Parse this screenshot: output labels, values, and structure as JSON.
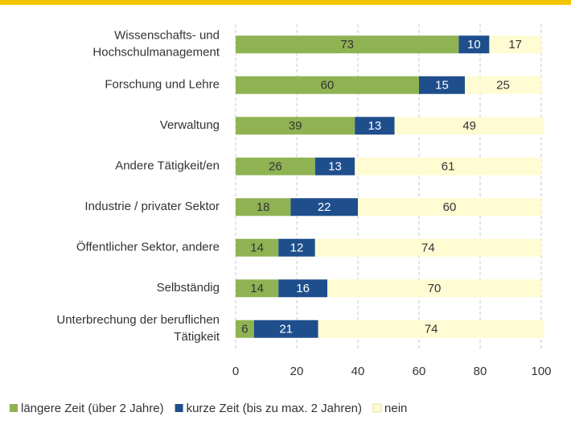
{
  "chart_data": {
    "type": "stacked_barh",
    "categories": [
      [
        "Wissenschafts- und",
        "Hochschulmanagement"
      ],
      [
        "Forschung und Lehre"
      ],
      [
        "Verwaltung"
      ],
      [
        "Andere Tätigkeit/en"
      ],
      [
        "Industrie / privater Sektor"
      ],
      [
        "Öffentlicher Sektor, andere"
      ],
      [
        "Selbständig"
      ],
      [
        "Unterbrechung der beruflichen",
        "Tätigkeit"
      ]
    ],
    "series": [
      {
        "name": "längere Zeit (über 2 Jahre)",
        "color": "#8fb353",
        "label_color": "#333333",
        "values": [
          73,
          60,
          39,
          26,
          18,
          14,
          14,
          6
        ]
      },
      {
        "name": "kurze Zeit (bis zu max. 2 Jahren)",
        "color": "#1f4e8c",
        "label_color": "#ffffff",
        "values": [
          10,
          15,
          13,
          13,
          22,
          12,
          16,
          21
        ]
      },
      {
        "name": "nein",
        "color": "#fffbd3",
        "label_color": "#333333",
        "values": [
          17,
          25,
          49,
          61,
          60,
          74,
          70,
          74
        ]
      }
    ],
    "xlim": [
      0,
      100
    ],
    "xticks": [
      0,
      20,
      40,
      60,
      80,
      100
    ],
    "grid": true,
    "legend": "bottom"
  }
}
